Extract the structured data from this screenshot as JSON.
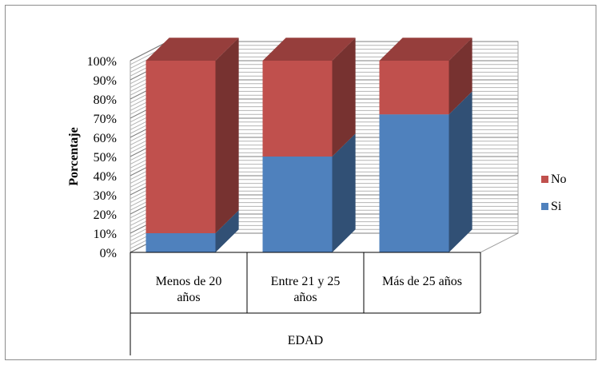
{
  "chart_data": {
    "type": "bar",
    "stacked": true,
    "three_d": true,
    "categories": [
      [
        "Menos de   20",
        "años"
      ],
      [
        "Entre 21  y 25",
        "años"
      ],
      [
        "Más de  25 años"
      ]
    ],
    "series": [
      {
        "name": "Si",
        "color": "#4f81bd",
        "values": [
          10,
          50,
          72
        ]
      },
      {
        "name": "No",
        "color": "#c0504d",
        "values": [
          90,
          50,
          28
        ]
      }
    ],
    "yticks": [
      "0%",
      "10%",
      "20%",
      "30%",
      "40%",
      "50%",
      "60%",
      "70%",
      "80%",
      "90%",
      "100%"
    ],
    "ylim": [
      0,
      100
    ],
    "ylabel": "Porcentaje",
    "xlabel": "EDAD",
    "grid": true,
    "legend": "right"
  }
}
